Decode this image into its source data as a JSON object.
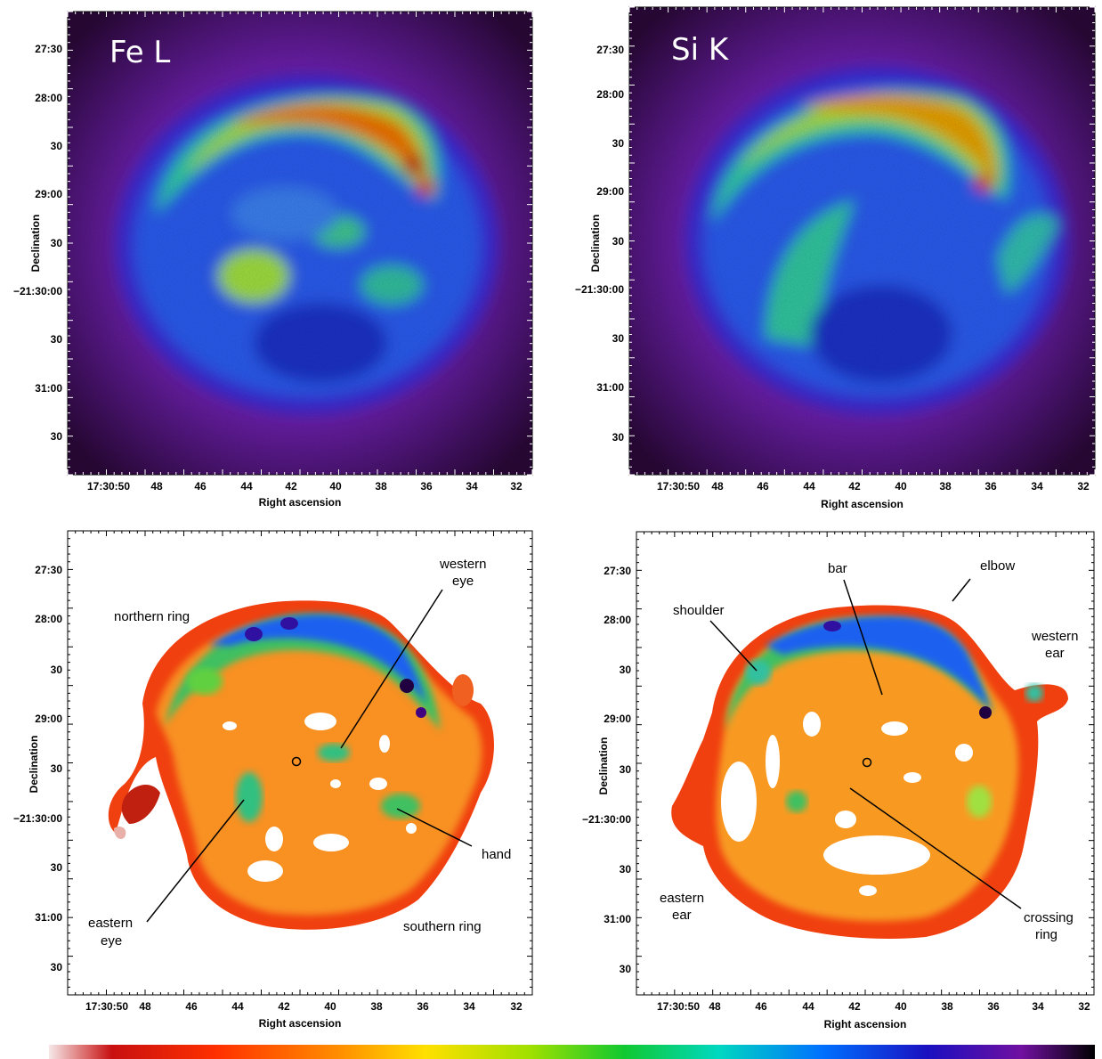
{
  "panels": [
    {
      "id": "fe-l",
      "kind": "image",
      "label": "Fe L",
      "xlabel": "Right ascension",
      "ylabel": "Declination",
      "ra_ticks": [
        "17:30:50",
        "48",
        "46",
        "44",
        "42",
        "40",
        "38",
        "36",
        "34",
        "32"
      ],
      "dec_ticks": [
        "27:30",
        "28:00",
        "30",
        "29:00",
        "30",
        "−21:30:00",
        "30",
        "31:00",
        "30"
      ]
    },
    {
      "id": "si-k",
      "kind": "image",
      "label": "Si K",
      "xlabel": "Right ascension",
      "ylabel": "Declination",
      "ra_ticks": [
        "17:30:50",
        "48",
        "46",
        "44",
        "42",
        "40",
        "38",
        "36",
        "34",
        "32"
      ],
      "dec_ticks": [
        "27:30",
        "28:00",
        "30",
        "29:00",
        "30",
        "−21:30:00",
        "30",
        "31:00",
        "30"
      ]
    },
    {
      "id": "fe-map",
      "kind": "map",
      "xlabel": "Right ascension",
      "ylabel": "Declination",
      "ra_ticks": [
        "17:30:50",
        "48",
        "46",
        "44",
        "42",
        "40",
        "38",
        "36",
        "34",
        "32"
      ],
      "dec_ticks": [
        "27:30",
        "28:00",
        "30",
        "29:00",
        "30",
        "−21:30:00",
        "30",
        "31:00",
        "30"
      ],
      "annotations": [
        {
          "lines": [
            "northern ring"
          ],
          "name": "northern-ring-label"
        },
        {
          "lines": [
            "western",
            "eye"
          ],
          "name": "western-eye-label"
        },
        {
          "lines": [
            "hand"
          ],
          "name": "hand-label"
        },
        {
          "lines": [
            "eastern",
            "eye"
          ],
          "name": "eastern-eye-label"
        },
        {
          "lines": [
            "southern ring"
          ],
          "name": "southern-ring-label"
        }
      ]
    },
    {
      "id": "si-map",
      "kind": "map",
      "xlabel": "Right ascension",
      "ylabel": "Declination",
      "ra_ticks": [
        "17:30:50",
        "48",
        "46",
        "44",
        "42",
        "40",
        "38",
        "36",
        "34",
        "32"
      ],
      "dec_ticks": [
        "27:30",
        "28:00",
        "30",
        "29:00",
        "30",
        "−21:30:00",
        "30",
        "31:00",
        "30"
      ],
      "annotations": [
        {
          "lines": [
            "bar"
          ],
          "name": "bar-label"
        },
        {
          "lines": [
            "elbow"
          ],
          "name": "elbow-label"
        },
        {
          "lines": [
            "shoulder"
          ],
          "name": "shoulder-label"
        },
        {
          "lines": [
            "western",
            "ear"
          ],
          "name": "western-ear-label"
        },
        {
          "lines": [
            "eastern",
            "ear"
          ],
          "name": "eastern-ear-label"
        },
        {
          "lines": [
            "crossing",
            "ring"
          ],
          "name": "crossing-ring-label"
        }
      ]
    }
  ],
  "colors": {
    "background_image": "#6a1fa0",
    "colorbar_stops": [
      "#f4e6e6",
      "#c81010",
      "#ff6000",
      "#ffd000",
      "#a0e000",
      "#10c830",
      "#00d0c0",
      "#0060ff",
      "#1010c0",
      "#6010a0",
      "#000000"
    ]
  }
}
